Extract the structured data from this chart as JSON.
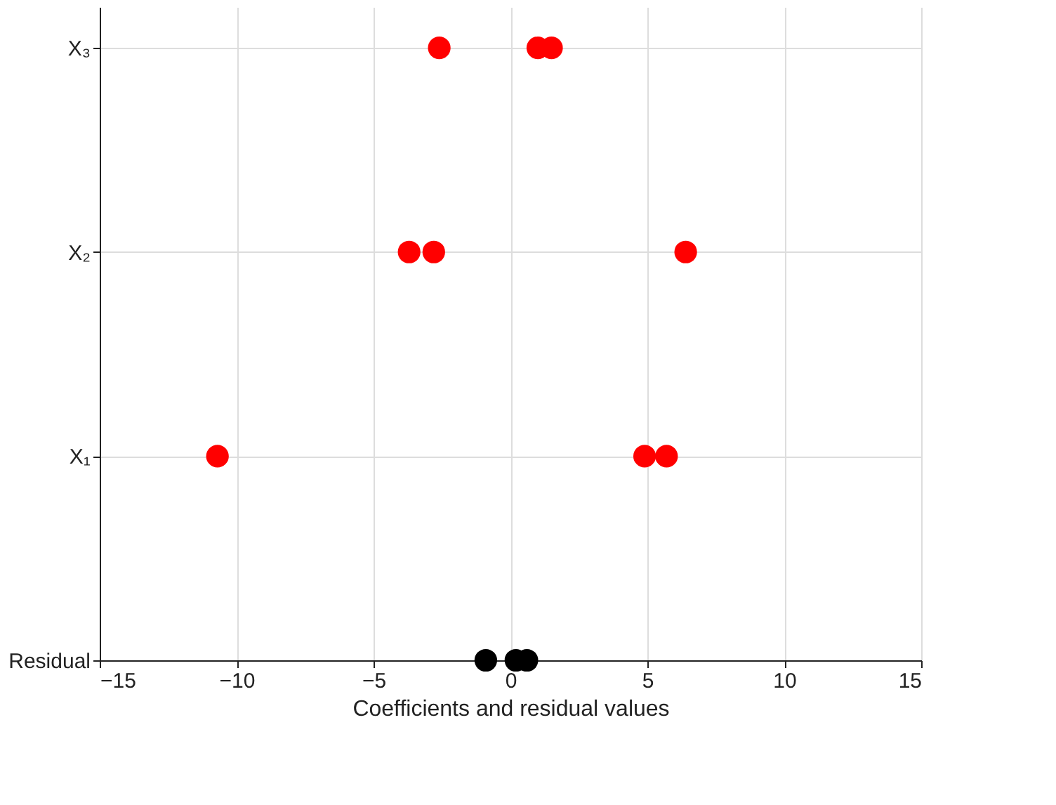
{
  "chart_data": {
    "type": "scatter",
    "orientation": "horizontal",
    "xlabel": "Coefficients and residual values",
    "categories": [
      "X₃",
      "X₂",
      "X₁",
      "Residual"
    ],
    "series": [
      {
        "colors": [
          "#ff0000",
          "#ff0000",
          "#ff0000",
          "#000000"
        ],
        "values": [
          -2.6,
          -3.7,
          -10.7,
          -0.9
        ]
      },
      {
        "colors": [
          "#ff0000",
          "#ff0000",
          "#ff0000",
          "#000000"
        ],
        "values": [
          1.0,
          -2.8,
          4.9,
          0.2
        ]
      },
      {
        "colors": [
          "#ff0000",
          "#ff0000",
          "#ff0000",
          "#000000"
        ],
        "values": [
          1.5,
          6.4,
          5.7,
          0.6
        ]
      }
    ],
    "xlim": [
      -15,
      15
    ],
    "xticks": [
      -15,
      -10,
      -5,
      0,
      5,
      10,
      15
    ],
    "grid": true,
    "marker": "circle"
  }
}
